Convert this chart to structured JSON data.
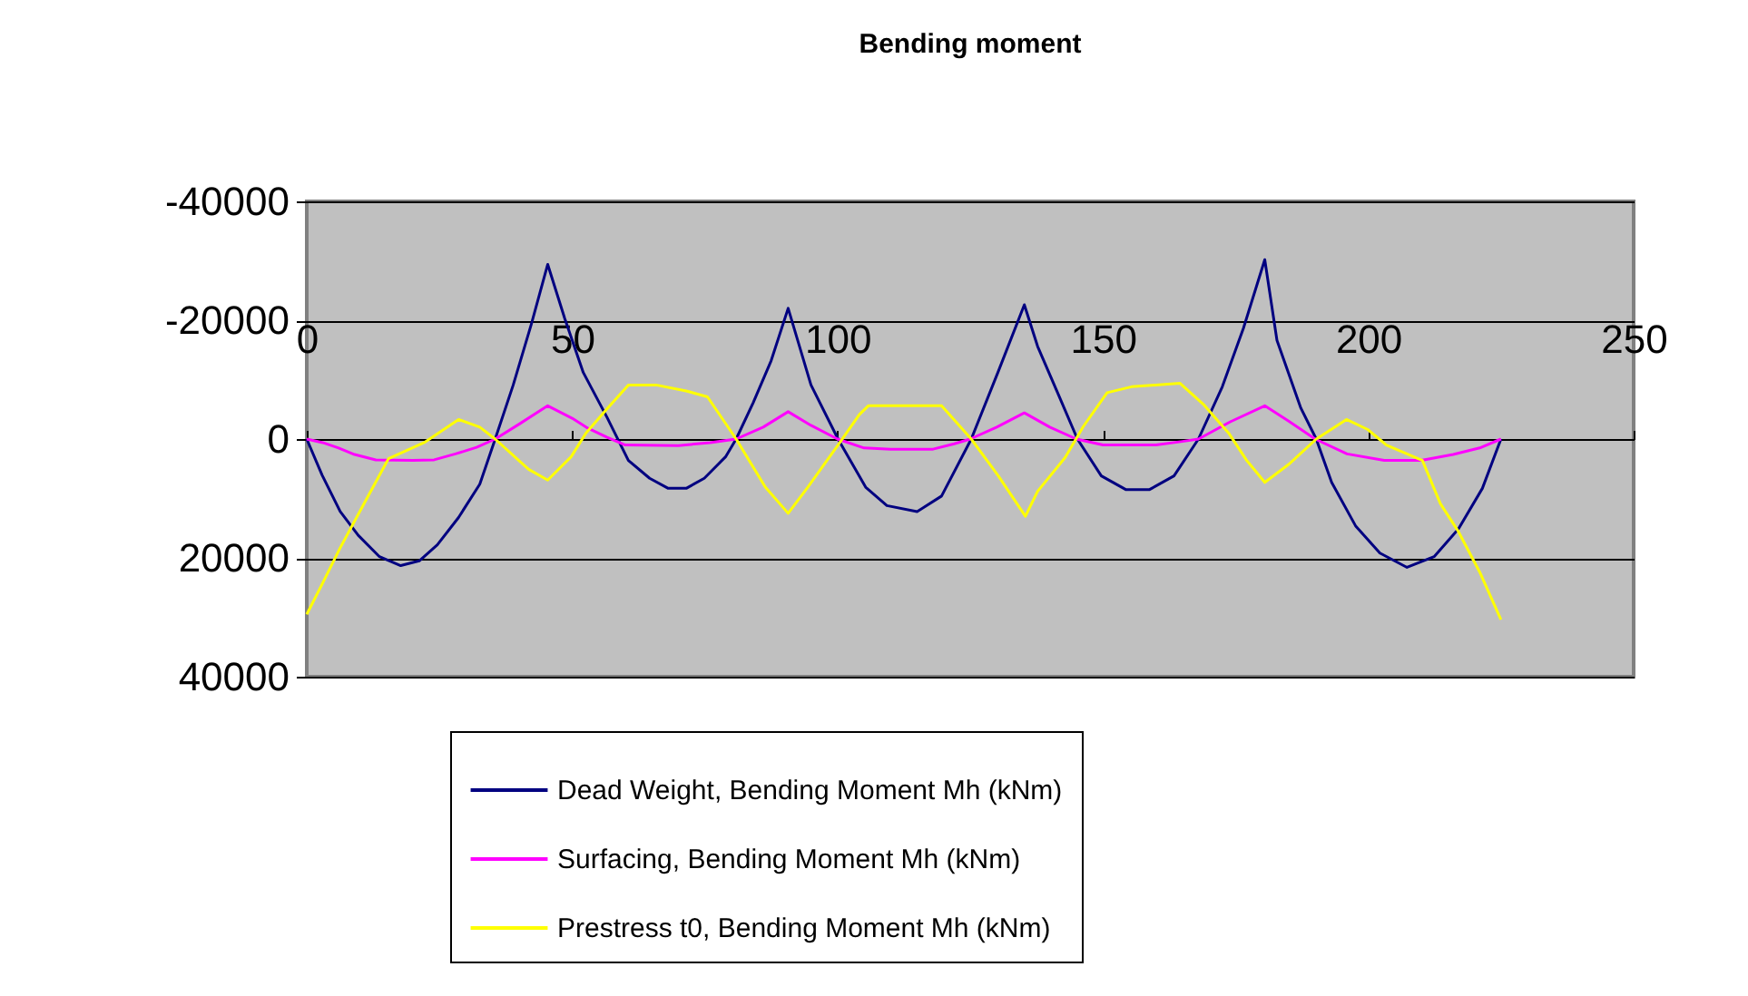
{
  "chart_data": {
    "type": "line",
    "title": "Bending moment",
    "xlim": [
      0,
      250
    ],
    "xticks": [
      0,
      50,
      100,
      150,
      200,
      250
    ],
    "ylim": [
      40000,
      -40000
    ],
    "yticks": [
      -40000,
      -20000,
      0,
      20000,
      40000
    ],
    "grid": "y",
    "legend": "bottom",
    "line_style": "solid",
    "marker": "none",
    "series": [
      {
        "name": "Dead Weight, Bending Moment Mh (kNm)",
        "color": "#000080",
        "x": [
          0,
          2.9,
          6.3,
          9.7,
          13.7,
          17.7,
          21.2,
          24.6,
          28.6,
          32.6,
          35.5,
          38.9,
          42.3,
          45.4,
          48.6,
          52.1,
          56.6,
          60.6,
          64.6,
          68.1,
          71.5,
          74.9,
          78.9,
          80.9,
          84.1,
          87.5,
          90.7,
          95,
          100.1,
          105.3,
          109.3,
          115,
          119.6,
          125.2,
          130.3,
          135.2,
          137.7,
          141.7,
          145.2,
          149.7,
          154.3,
          158.8,
          163.4,
          168,
          172.5,
          176.5,
          180.5,
          182.8,
          187.3,
          190.2,
          193.1,
          197.6,
          202.2,
          207.3,
          212.4,
          217,
          221.5,
          225
        ],
        "values": [
          0,
          6100,
          12200,
          16200,
          19800,
          21300,
          20500,
          17800,
          13200,
          7600,
          0,
          -9100,
          -19300,
          -29400,
          -20300,
          -11200,
          -3600,
          3600,
          6600,
          8300,
          8300,
          6600,
          3000,
          0,
          -6100,
          -13200,
          -22000,
          -9100,
          0,
          8100,
          11200,
          12200,
          9600,
          0,
          -11400,
          -22600,
          -15600,
          -7300,
          0,
          6200,
          8500,
          8500,
          6200,
          0,
          -8800,
          -18700,
          -30200,
          -16600,
          -5200,
          0,
          7300,
          14600,
          19200,
          21600,
          19800,
          15100,
          8300,
          0
        ]
      },
      {
        "name": "Surfacing, Bending Moment Mh (kNm)",
        "color": "#ff00ff",
        "x": [
          0,
          3,
          6,
          9,
          13,
          20,
          24,
          28,
          32,
          35.5,
          40,
          45.4,
          50,
          53,
          56.6,
          60,
          70,
          76,
          80.9,
          86,
          90.7,
          95,
          100,
          105,
          110,
          118,
          122,
          125,
          130,
          135.2,
          140,
          145,
          150,
          160,
          165,
          168,
          174,
          180.5,
          185,
          190,
          196,
          203,
          210,
          216,
          221,
          225
        ],
        "values": [
          0,
          600,
          1500,
          2600,
          3500,
          3600,
          3500,
          2500,
          1400,
          0,
          -2500,
          -5600,
          -3500,
          -1800,
          -300,
          1000,
          1100,
          600,
          0,
          -2000,
          -4600,
          -2300,
          0,
          1500,
          1700,
          1700,
          800,
          0,
          -2000,
          -4400,
          -2000,
          0,
          1000,
          1000,
          400,
          0,
          -2900,
          -5600,
          -3000,
          0,
          2500,
          3600,
          3600,
          2600,
          1500,
          0
        ]
      },
      {
        "name": "Prestress t0, Bending Moment Mh (kNm)",
        "color": "#ffff00",
        "x": [
          0,
          2.9,
          6.3,
          10.9,
          15.4,
          22.3,
          28.6,
          32.6,
          35.5,
          41.8,
          45.4,
          49.8,
          52.6,
          56.6,
          60.6,
          65.8,
          71.5,
          75.5,
          80.9,
          86.4,
          90.7,
          94.4,
          100.1,
          104.1,
          105.8,
          119.6,
          125.2,
          130.3,
          135.4,
          137.7,
          142.9,
          146.3,
          150.8,
          155.4,
          164.5,
          169.1,
          173.7,
          177.1,
          180.5,
          185.1,
          190.2,
          195.9,
          199.9,
          203.4,
          210.2,
          213.6,
          217,
          221,
          225
        ],
        "values": [
          29500,
          24400,
          18300,
          10700,
          3300,
          500,
          -3300,
          -2000,
          0,
          5100,
          6900,
          3000,
          -1000,
          -5100,
          -9100,
          -9100,
          -8100,
          -7100,
          0,
          8100,
          12500,
          8100,
          1000,
          -4100,
          -5600,
          -5600,
          0,
          6200,
          13000,
          8800,
          3100,
          -2100,
          -7800,
          -8800,
          -9400,
          -5700,
          -1000,
          3600,
          7300,
          4200,
          0,
          -3300,
          -1600,
          1000,
          3600,
          10900,
          15600,
          22400,
          30400
        ]
      }
    ]
  }
}
